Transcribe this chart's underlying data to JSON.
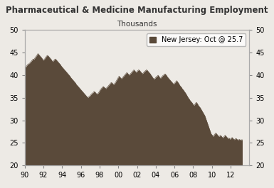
{
  "title": "Pharmaceutical & Medicine Manufacturing Employment",
  "subtitle": "Thousands",
  "legend_label": "New Jersey: Oct @ 25.7",
  "fill_color": "#5a4a3a",
  "line_color": "#5a4a3a",
  "background_color": "#edeae5",
  "ylim": [
    20,
    50
  ],
  "yticks": [
    20,
    25,
    30,
    35,
    40,
    45,
    50
  ],
  "xlim_start": 1990.0,
  "xlim_end": 2014.0,
  "xtick_labels": [
    "90",
    "92",
    "94",
    "96",
    "98",
    "00",
    "02",
    "04",
    "06",
    "08",
    "10",
    "12"
  ],
  "xtick_positions": [
    1990,
    1992,
    1994,
    1996,
    1998,
    2000,
    2002,
    2004,
    2006,
    2008,
    2010,
    2012
  ],
  "values": [
    42.0,
    41.8,
    41.9,
    42.2,
    42.4,
    42.5,
    42.6,
    42.8,
    43.0,
    43.2,
    43.4,
    43.6,
    43.5,
    43.8,
    44.0,
    44.3,
    44.5,
    44.8,
    44.6,
    44.4,
    44.2,
    44.0,
    43.8,
    43.5,
    43.3,
    43.5,
    43.7,
    44.0,
    44.2,
    44.4,
    44.3,
    44.1,
    43.9,
    43.7,
    43.5,
    43.2,
    43.0,
    43.2,
    43.4,
    43.6,
    43.5,
    43.3,
    43.1,
    42.9,
    42.7,
    42.5,
    42.3,
    42.0,
    41.8,
    41.6,
    41.4,
    41.2,
    41.0,
    40.8,
    40.6,
    40.4,
    40.2,
    40.0,
    39.8,
    39.5,
    39.3,
    39.1,
    38.9,
    38.7,
    38.5,
    38.3,
    38.0,
    37.8,
    37.6,
    37.4,
    37.2,
    37.0,
    36.8,
    36.6,
    36.4,
    36.2,
    36.0,
    35.8,
    35.6,
    35.4,
    35.2,
    35.0,
    35.2,
    35.3,
    35.5,
    35.7,
    35.9,
    36.0,
    36.2,
    36.4,
    36.3,
    36.1,
    35.9,
    35.8,
    36.0,
    36.2,
    36.5,
    36.8,
    37.0,
    37.2,
    37.4,
    37.5,
    37.3,
    37.2,
    37.0,
    37.2,
    37.4,
    37.6,
    37.8,
    38.0,
    38.2,
    38.4,
    38.3,
    38.1,
    37.9,
    38.1,
    38.3,
    38.6,
    38.9,
    39.2,
    39.5,
    39.8,
    39.6,
    39.4,
    39.2,
    39.4,
    39.6,
    39.8,
    40.0,
    40.2,
    40.4,
    40.6,
    40.4,
    40.2,
    40.0,
    40.2,
    40.4,
    40.6,
    40.8,
    41.0,
    41.2,
    41.0,
    40.8,
    40.6,
    40.8,
    41.0,
    41.2,
    41.1,
    40.9,
    40.7,
    40.5,
    40.3,
    40.5,
    40.7,
    40.9,
    41.0,
    41.2,
    41.1,
    40.9,
    40.7,
    40.5,
    40.3,
    40.0,
    39.8,
    39.5,
    39.3,
    39.1,
    39.3,
    39.5,
    39.7,
    39.8,
    40.0,
    39.8,
    39.5,
    39.3,
    39.5,
    39.7,
    39.9,
    40.0,
    40.2,
    40.3,
    40.1,
    39.9,
    39.6,
    39.4,
    39.2,
    39.0,
    38.8,
    38.6,
    38.4,
    38.2,
    38.0,
    38.2,
    38.4,
    38.6,
    38.8,
    38.5,
    38.3,
    38.0,
    37.7,
    37.5,
    37.3,
    37.0,
    36.8,
    36.6,
    36.3,
    36.1,
    35.8,
    35.5,
    35.2,
    34.9,
    34.7,
    34.4,
    34.2,
    34.0,
    33.8,
    33.5,
    33.3,
    33.5,
    33.8,
    34.0,
    33.8,
    33.5,
    33.2,
    33.0,
    32.8,
    32.5,
    32.2,
    31.9,
    31.6,
    31.3,
    31.0,
    30.5,
    30.0,
    29.5,
    29.0,
    28.5,
    28.0,
    27.5,
    27.0,
    26.8,
    26.6,
    26.4,
    26.8,
    27.0,
    27.2,
    27.0,
    26.8,
    26.6,
    26.4,
    26.5,
    26.7,
    26.5,
    26.3,
    26.1,
    26.3,
    26.5,
    26.7,
    26.5,
    26.3,
    26.1,
    25.9,
    26.1,
    25.8,
    25.9,
    26.1,
    26.2,
    26.0,
    25.8,
    25.7,
    25.9,
    26.0,
    25.8,
    25.7,
    25.6,
    25.8,
    25.7,
    25.6,
    25.7,
    25.7
  ]
}
